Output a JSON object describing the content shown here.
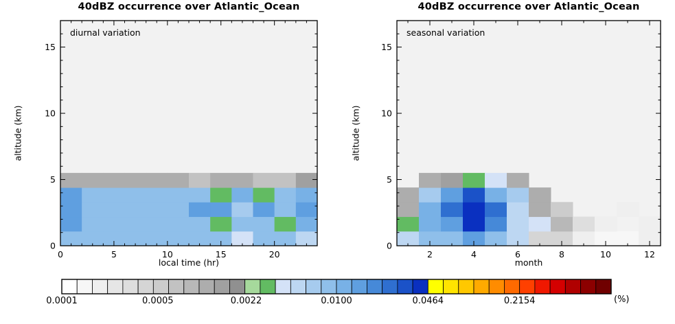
{
  "page": {
    "background": "#ffffff"
  },
  "chart_data": [
    {
      "type": "heatmap",
      "title": "40dBZ occurrence over Atlantic_Ocean",
      "annotation": "diurnal variation",
      "xlabel": "local time (hr)",
      "ylabel": "altitude (km)",
      "xlim": [
        0,
        24
      ],
      "ylim": [
        0,
        17
      ],
      "x_major_ticks": [
        0,
        5,
        10,
        15,
        20
      ],
      "x_minor_step": 1,
      "y_major_ticks": [
        0,
        5,
        10,
        15
      ],
      "y_minor_step": 1,
      "x_edges": [
        0,
        2,
        4,
        6,
        8,
        10,
        12,
        14,
        16,
        18,
        20,
        22,
        24
      ],
      "y_edges": [
        0,
        1.1,
        2.2,
        3.3,
        4.4,
        5.5
      ],
      "values_percent": [
        [
          0.008,
          0.008,
          0.008,
          0.008,
          0.008,
          0.008,
          0.009,
          0.009,
          0.0045,
          0.009,
          0.008,
          0.0055
        ],
        [
          0.013,
          0.008,
          0.008,
          0.008,
          0.008,
          0.008,
          0.008,
          0.003,
          0.008,
          0.008,
          0.003,
          0.011
        ],
        [
          0.016,
          0.009,
          0.009,
          0.009,
          0.009,
          0.009,
          0.013,
          0.013,
          0.006,
          0.013,
          0.009,
          0.013
        ],
        [
          0.014,
          0.008,
          0.008,
          0.008,
          0.008,
          0.008,
          0.008,
          0.003,
          0.01,
          0.003,
          0.008,
          0.012
        ],
        [
          0.0012,
          0.0012,
          0.0012,
          0.0012,
          0.0012,
          0.0012,
          0.0006,
          0.0012,
          0.0012,
          0.0006,
          0.0007,
          0.0014
        ]
      ]
    },
    {
      "type": "heatmap",
      "title": "40dBZ occurrence over Atlantic_Ocean",
      "annotation": "seasonal variation",
      "xlabel": "month",
      "ylabel": "altitude (km)",
      "xlim": [
        0.5,
        12.5
      ],
      "ylim": [
        0,
        17
      ],
      "x_major_ticks": [
        2,
        4,
        6,
        8,
        10,
        12
      ],
      "x_minor_step": 1,
      "y_major_ticks": [
        0,
        5,
        10,
        15
      ],
      "y_minor_step": 1,
      "x_edges": [
        0.5,
        1.5,
        2.5,
        3.5,
        4.5,
        5.5,
        6.5,
        7.5,
        8.5,
        9.5,
        10.5,
        11.5,
        12.5
      ],
      "y_edges": [
        0,
        1.1,
        2.2,
        3.3,
        4.4,
        5.5
      ],
      "values_percent": [
        [
          0.005,
          0.008,
          0.009,
          0.013,
          0.008,
          0.005,
          0.0004,
          0.0004,
          0.0002,
          0.00015,
          0.00015,
          0.0002
        ],
        [
          0.003,
          0.01,
          0.013,
          0.042,
          0.018,
          0.005,
          0.004,
          0.0008,
          0.0003,
          0.0002,
          0,
          0.0002
        ],
        [
          0.001,
          0.01,
          0.022,
          0.042,
          0.022,
          0.005,
          0.0012,
          0.0005,
          0,
          0,
          0.0002,
          0
        ],
        [
          0.0012,
          0.007,
          0.013,
          0.03,
          0.01,
          0.006,
          0.0012,
          0,
          0,
          0,
          0,
          0
        ],
        [
          0,
          0.0012,
          0.0013,
          0.003,
          0.004,
          0.0012,
          0,
          0,
          0,
          0,
          0,
          0
        ]
      ]
    },
    {
      "type": "colorbar",
      "unit_label": "(%)",
      "scale": "log10",
      "range_percent": [
        0.0001,
        1.0
      ],
      "tick_labels": [
        "0.0001",
        "0.0005",
        "0.0022",
        "0.0100",
        "0.0464",
        "0.2154"
      ],
      "tick_values": [
        0.0001,
        0.0005,
        0.0022,
        0.01,
        0.0464,
        0.2154
      ],
      "plot_background": "#f2f2f2",
      "palette": [
        "#ffffff",
        "#f7f7f7",
        "#efefef",
        "#e6e6e6",
        "#dedede",
        "#d5d5d5",
        "#cccccc",
        "#c2c2c2",
        "#b8b8b8",
        "#adadad",
        "#a0a0a0",
        "#909090",
        "#a6d99c",
        "#62bb62",
        "#d4e2f7",
        "#bdd7f2",
        "#a6cbee",
        "#8fbfea",
        "#78b1e6",
        "#5f9fe0",
        "#4689d8",
        "#2f6fd0",
        "#1b52c8",
        "#0a30c0",
        "#ffff00",
        "#ffe400",
        "#ffc800",
        "#ffaa00",
        "#ff8c00",
        "#ff6a00",
        "#ff4000",
        "#f01800",
        "#d40000",
        "#b00000",
        "#8c0000",
        "#700000"
      ]
    }
  ]
}
